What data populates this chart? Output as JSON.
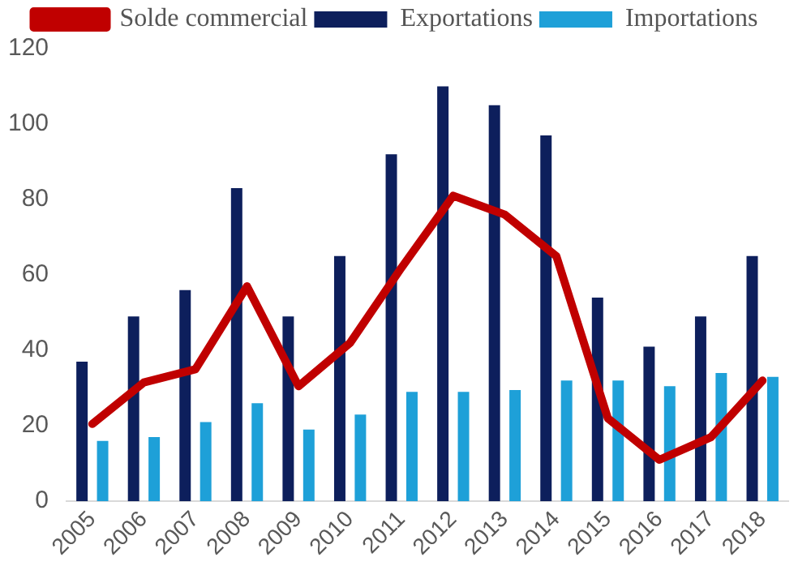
{
  "chart_data": {
    "type": "bar",
    "categories": [
      "2005",
      "2006",
      "2007",
      "2008",
      "2009",
      "2010",
      "2011",
      "2012",
      "2013",
      "2014",
      "2015",
      "2016",
      "2017",
      "2018"
    ],
    "series": [
      {
        "name": "Exportations",
        "color": "#0d1f5c",
        "values": [
          37,
          49,
          56,
          83,
          49,
          65,
          92,
          110,
          105,
          97,
          54,
          41,
          49,
          65
        ]
      },
      {
        "name": "Importations",
        "color": "#1ea0d8",
        "values": [
          16,
          17,
          21,
          26,
          19,
          23,
          29,
          29,
          29.5,
          32,
          32,
          30.5,
          34,
          33
        ]
      },
      {
        "name": "Solde commercial",
        "type": "line",
        "color": "#c00000",
        "values": [
          20.5,
          31.5,
          35,
          57,
          30.5,
          42,
          62,
          81,
          76,
          65,
          22,
          11,
          17,
          32
        ]
      }
    ],
    "ylim": [
      0,
      120
    ],
    "yticks": [
      0,
      20,
      40,
      60,
      80,
      100,
      120
    ],
    "grid": false,
    "legend": "top",
    "marker": "none"
  }
}
